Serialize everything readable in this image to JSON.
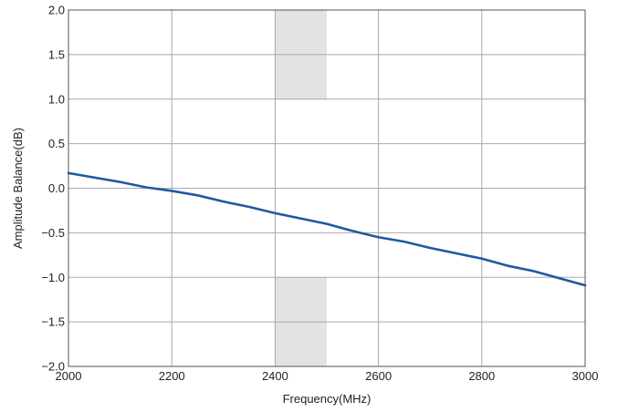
{
  "chart_data": {
    "type": "line",
    "title": "",
    "xlabel": "Frequency(MHz)",
    "ylabel": "Amplitude Balance(dB)",
    "xlim": [
      2000,
      3000
    ],
    "ylim": [
      -2.0,
      2.0
    ],
    "x_ticks": [
      2000,
      2200,
      2400,
      2600,
      2800,
      3000
    ],
    "y_ticks": [
      -2.0,
      -1.5,
      -1.0,
      -0.5,
      0.0,
      0.5,
      1.0,
      1.5,
      2.0
    ],
    "x_tick_labels": [
      "2000",
      "2200",
      "2400",
      "2600",
      "2800",
      "3000"
    ],
    "y_tick_labels": [
      "−2.0",
      "−1.5",
      "−1.0",
      "−0.5",
      "0.0",
      "0.5",
      "1.0",
      "1.5",
      "2.0"
    ],
    "grid": true,
    "legend": "none",
    "shaded_regions": [
      {
        "x": [
          2400,
          2500
        ],
        "y": [
          1.0,
          2.0
        ]
      },
      {
        "x": [
          2400,
          2500
        ],
        "y": [
          -2.0,
          -1.0
        ]
      }
    ],
    "series": [
      {
        "color": "#1f5aa0",
        "x": [
          2000,
          2050,
          2100,
          2150,
          2200,
          2250,
          2300,
          2350,
          2400,
          2450,
          2500,
          2550,
          2600,
          2650,
          2700,
          2750,
          2800,
          2850,
          2900,
          2950,
          3000
        ],
        "y": [
          0.17,
          0.12,
          0.07,
          0.01,
          -0.03,
          -0.08,
          -0.15,
          -0.21,
          -0.28,
          -0.34,
          -0.4,
          -0.48,
          -0.55,
          -0.6,
          -0.67,
          -0.73,
          -0.79,
          -0.87,
          -0.93,
          -1.01,
          -1.09
        ]
      }
    ]
  },
  "colors": {
    "grid": "#a8a8a8",
    "frame": "#555555",
    "shade": "#e3e3e5",
    "line": "#1f5aa0"
  }
}
